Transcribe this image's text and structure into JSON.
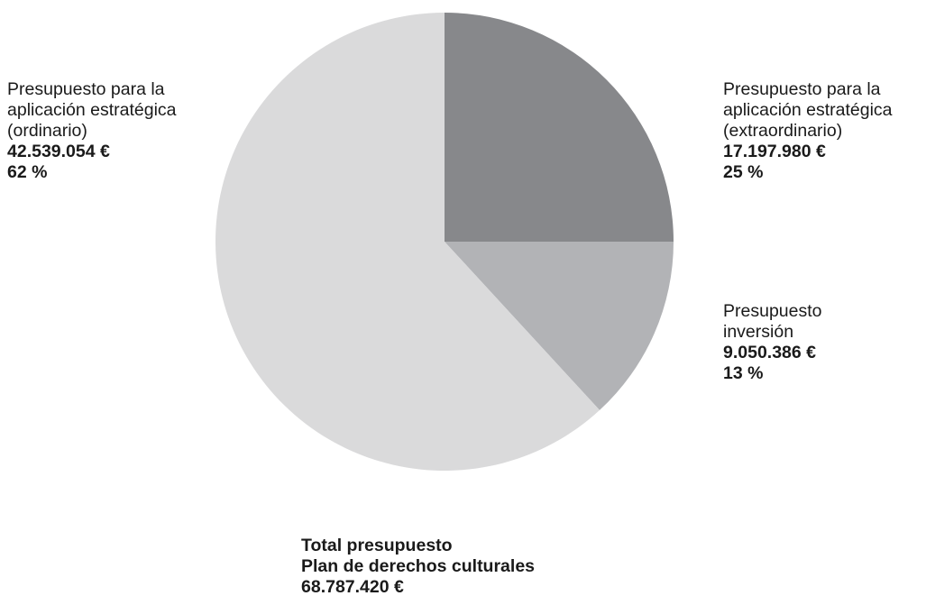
{
  "chart_data": {
    "type": "pie",
    "slices": [
      {
        "label_lines": [
          "Presupuesto para la",
          "aplicación estratégica",
          "(extraordinario)"
        ],
        "amount": "17.197.980 €",
        "percent": "25 %",
        "value": 17197980,
        "color": "#87888b"
      },
      {
        "label_lines": [
          "Presupuesto",
          "inversión"
        ],
        "amount": "9.050.386 €",
        "percent": "13 %",
        "value": 9050386,
        "color": "#b2b3b6"
      },
      {
        "label_lines": [
          "Presupuesto para la",
          "aplicación estratégica",
          "(ordinario)"
        ],
        "amount": "42.539.054 €",
        "percent": "62 %",
        "value": 42539054,
        "color": "#dadadb"
      }
    ],
    "start": "12 o'clock",
    "direction": "clockwise",
    "total": {
      "line1": "Total presupuesto",
      "line2": "Plan de derechos culturales",
      "amount": "68.787.420 €"
    }
  }
}
